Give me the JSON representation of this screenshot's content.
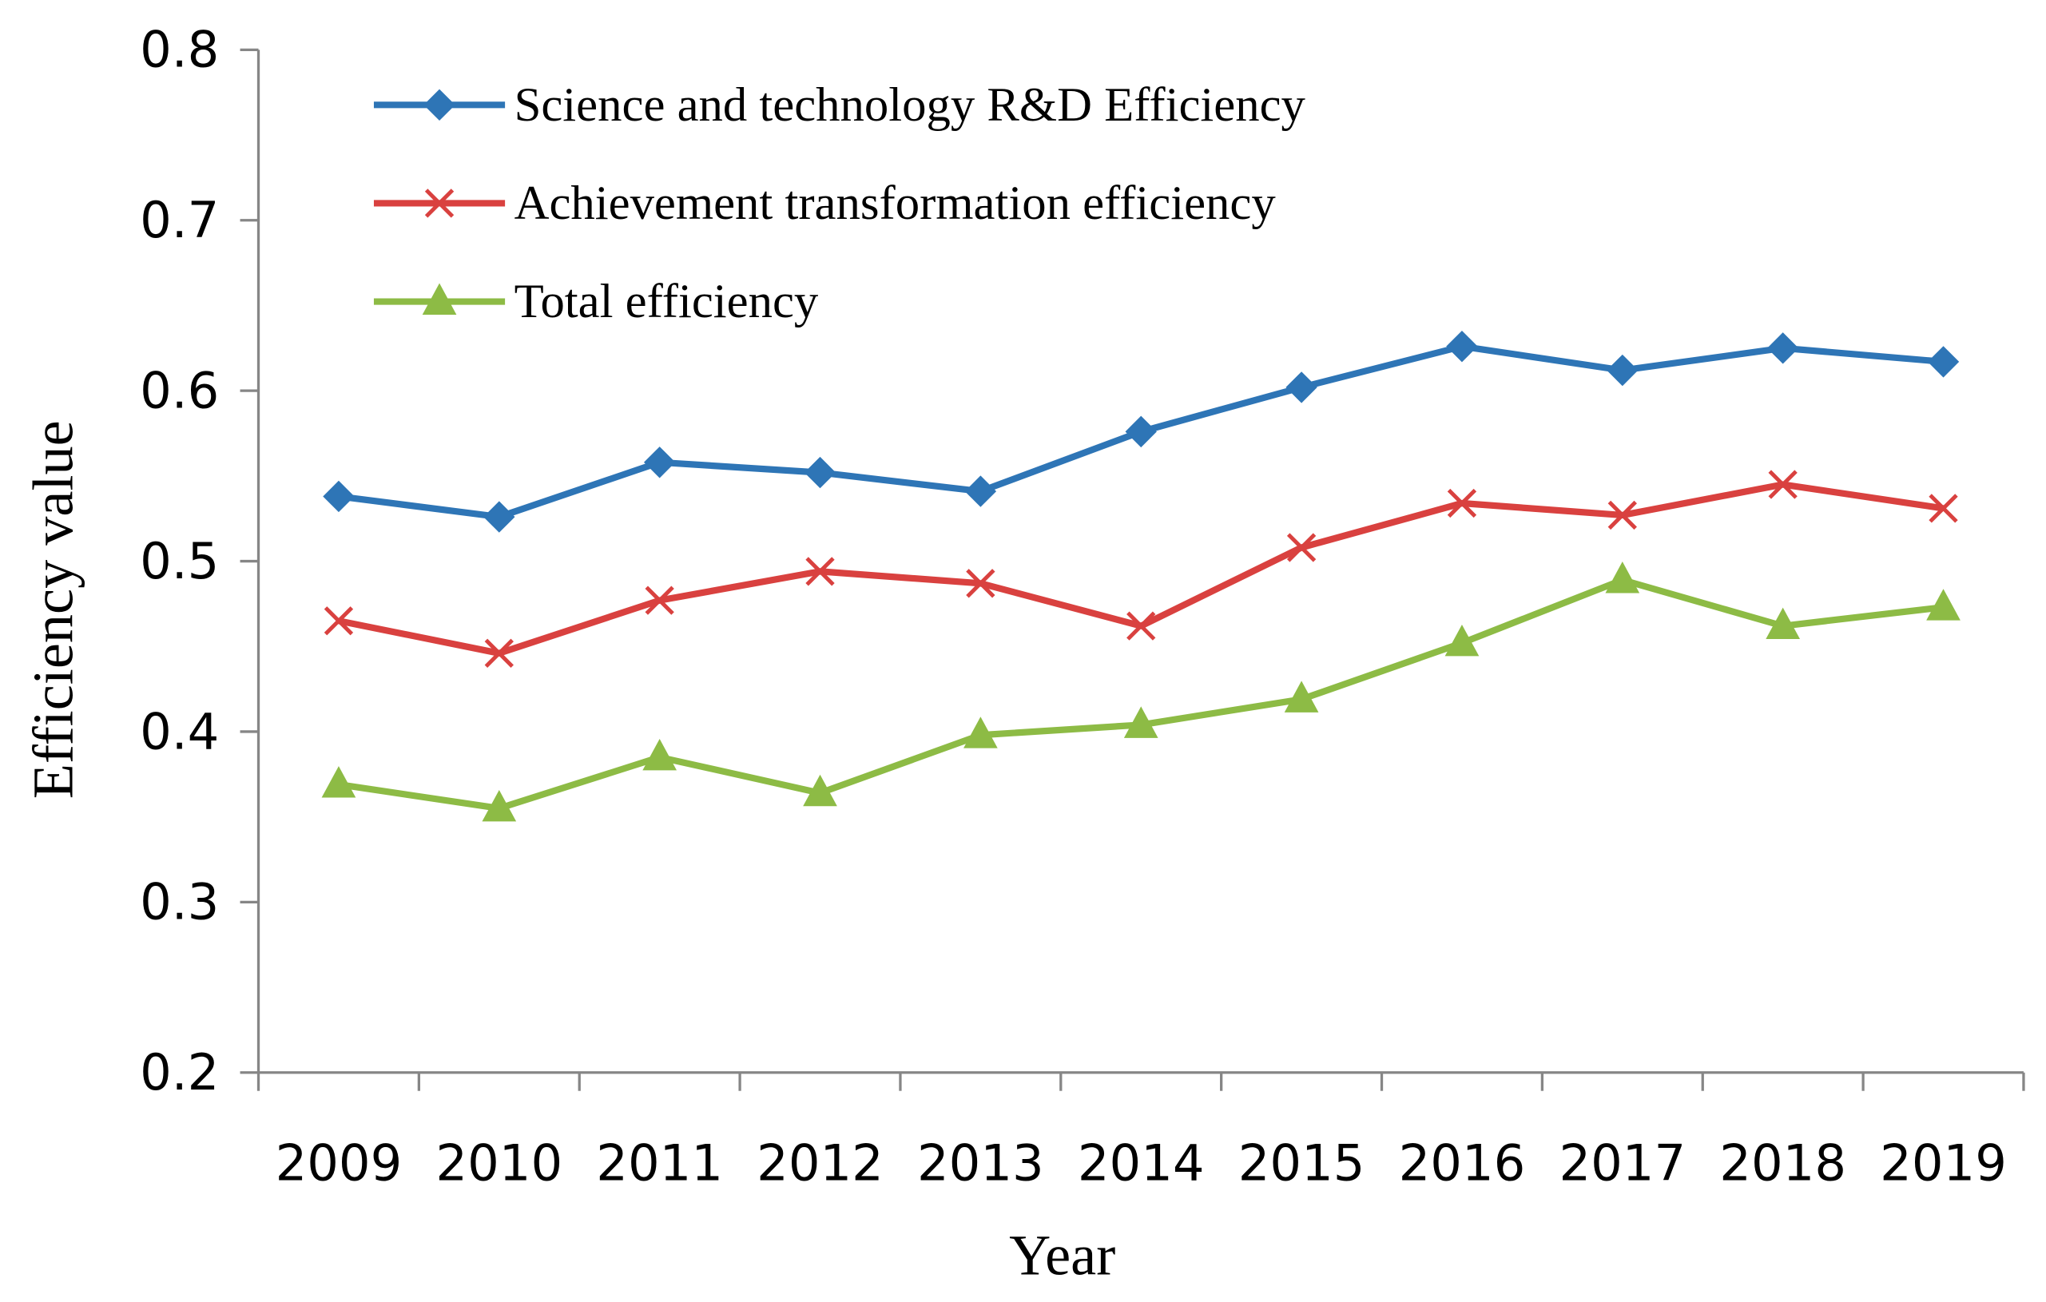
{
  "chart_data": {
    "type": "line",
    "title": "",
    "xlabel": "Year",
    "ylabel": "Efficiency value",
    "categories": [
      "2009",
      "2010",
      "2011",
      "2012",
      "2013",
      "2014",
      "2015",
      "2016",
      "2017",
      "2018",
      "2019"
    ],
    "ylim": [
      0.2,
      0.8
    ],
    "yticks": [
      "0.2",
      "0.3",
      "0.4",
      "0.5",
      "0.6",
      "0.7",
      "0.8"
    ],
    "grid": false,
    "legend_position": "top-left",
    "series": [
      {
        "name": "Science and technology R&D Efficiency",
        "color": "#2E75B6",
        "marker": "diamond",
        "values": [
          0.538,
          0.526,
          0.558,
          0.552,
          0.541,
          0.576,
          0.602,
          0.626,
          0.612,
          0.625,
          0.617
        ]
      },
      {
        "name": "Achievement transformation efficiency",
        "color": "#D9413F",
        "marker": "x",
        "values": [
          0.465,
          0.446,
          0.477,
          0.494,
          0.487,
          0.462,
          0.508,
          0.534,
          0.527,
          0.545,
          0.531
        ]
      },
      {
        "name": "Total efficiency",
        "color": "#8DBB45",
        "marker": "triangle",
        "values": [
          0.369,
          0.355,
          0.385,
          0.364,
          0.398,
          0.404,
          0.419,
          0.452,
          0.489,
          0.462,
          0.473
        ]
      }
    ]
  }
}
